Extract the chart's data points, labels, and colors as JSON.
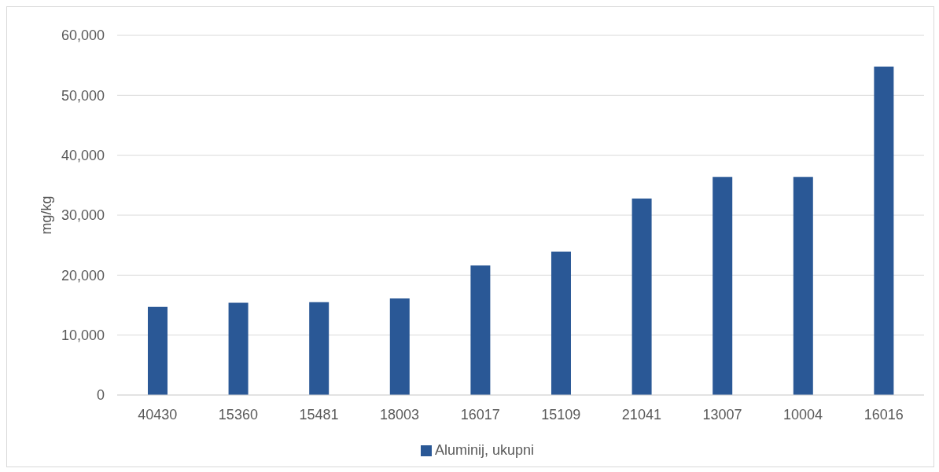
{
  "chart_data": {
    "type": "bar",
    "ylabel": "mg/kg",
    "categories": [
      "40430",
      "15360",
      "15481",
      "18003",
      "16017",
      "15109",
      "21041",
      "13007",
      "10004",
      "16016"
    ],
    "series": [
      {
        "name": "Aluminij, ukupni",
        "color": "#2a5896",
        "values": [
          14700,
          15400,
          15500,
          16100,
          21600,
          23900,
          32800,
          36400,
          36400,
          54800
        ]
      }
    ],
    "ylim": [
      0,
      60000
    ],
    "yticks": [
      {
        "value": 0,
        "label": "0"
      },
      {
        "value": 10000,
        "label": "10,000"
      },
      {
        "value": 20000,
        "label": "20,000"
      },
      {
        "value": 30000,
        "label": "30,000"
      },
      {
        "value": 40000,
        "label": "40,000"
      },
      {
        "value": 50000,
        "label": "50,000"
      },
      {
        "value": 60000,
        "label": "60,000"
      }
    ],
    "grid": "y",
    "legend": "bottom"
  }
}
